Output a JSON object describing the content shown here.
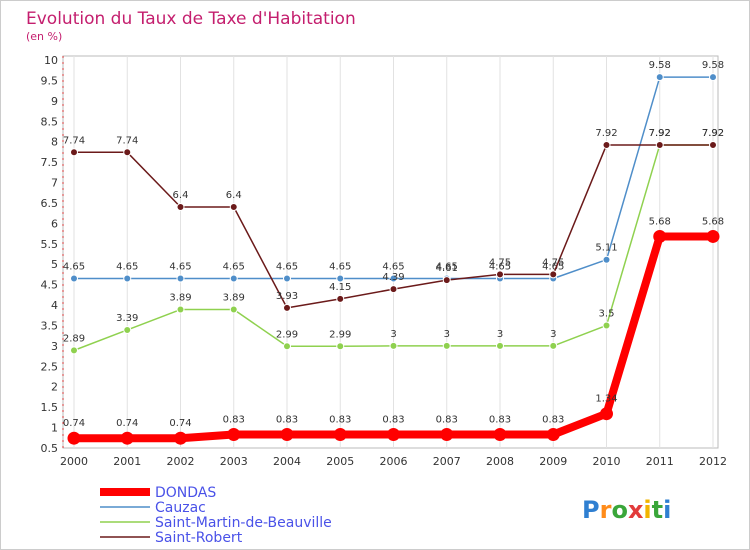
{
  "chart_data": {
    "type": "line",
    "title": "Evolution du Taux de Taxe d'Habitation",
    "subtitle": "(en %)",
    "x": [
      "2000",
      "2001",
      "2002",
      "2003",
      "2004",
      "2005",
      "2006",
      "2007",
      "2008",
      "2009",
      "2010",
      "2011",
      "2012"
    ],
    "ylim": [
      0.5,
      10
    ],
    "yticks": [
      "0.5",
      "1",
      "1.5",
      "2",
      "2.5",
      "3",
      "3.5",
      "4",
      "4.5",
      "5",
      "5.5",
      "6",
      "6.5",
      "7",
      "7.5",
      "8",
      "8.5",
      "9",
      "9.5",
      "10"
    ],
    "grid": "vertical",
    "legend_position": "bottom-left",
    "series": [
      {
        "name": "DONDAS",
        "color": "#ff0000",
        "emphasis": true,
        "values": [
          0.74,
          0.74,
          0.74,
          0.83,
          0.83,
          0.83,
          0.83,
          0.83,
          0.83,
          0.83,
          1.34,
          5.68,
          5.68
        ],
        "labels": [
          "0.74",
          "0.74",
          "0.74",
          "0.83",
          "0.83",
          "0.83",
          "0.83",
          "0.83",
          "0.83",
          "0.83",
          "1.34",
          "5.68",
          "5.68"
        ]
      },
      {
        "name": "Cauzac",
        "color": "#4f8ec9",
        "values": [
          4.65,
          4.65,
          4.65,
          4.65,
          4.65,
          4.65,
          4.65,
          4.65,
          4.65,
          4.65,
          5.11,
          9.58,
          9.58
        ],
        "labels": [
          "4.65",
          "4.65",
          "4.65",
          "4.65",
          "4.65",
          "4.65",
          "4.65",
          "4.65",
          "4.65",
          "4.65",
          "5.11",
          "9.58",
          "9.58"
        ]
      },
      {
        "name": "Saint-Martin-de-Beauville",
        "color": "#8fd14f",
        "values": [
          2.89,
          3.39,
          3.89,
          3.89,
          2.99,
          2.99,
          3,
          3,
          3,
          3,
          3.5,
          7.92,
          7.92
        ],
        "labels": [
          "2.89",
          "3.39",
          "3.89",
          "3.89",
          "2.99",
          "2.99",
          "3",
          "3",
          "3",
          "3",
          "3.5",
          "7.92",
          "7.92"
        ]
      },
      {
        "name": "Saint-Robert",
        "color": "#6b1a1a",
        "values": [
          7.74,
          7.74,
          6.4,
          6.4,
          3.93,
          4.15,
          4.39,
          4.61,
          4.75,
          4.75,
          7.92,
          7.92,
          7.92
        ],
        "labels": [
          "7.74",
          "7.74",
          "6.4",
          "6.4",
          "3.93",
          "4.15",
          "4.39",
          "4.61",
          "4.75",
          "4.75",
          "7.92",
          "7.92",
          "7.92"
        ]
      }
    ]
  },
  "logo": {
    "text": "Proxiti"
  }
}
